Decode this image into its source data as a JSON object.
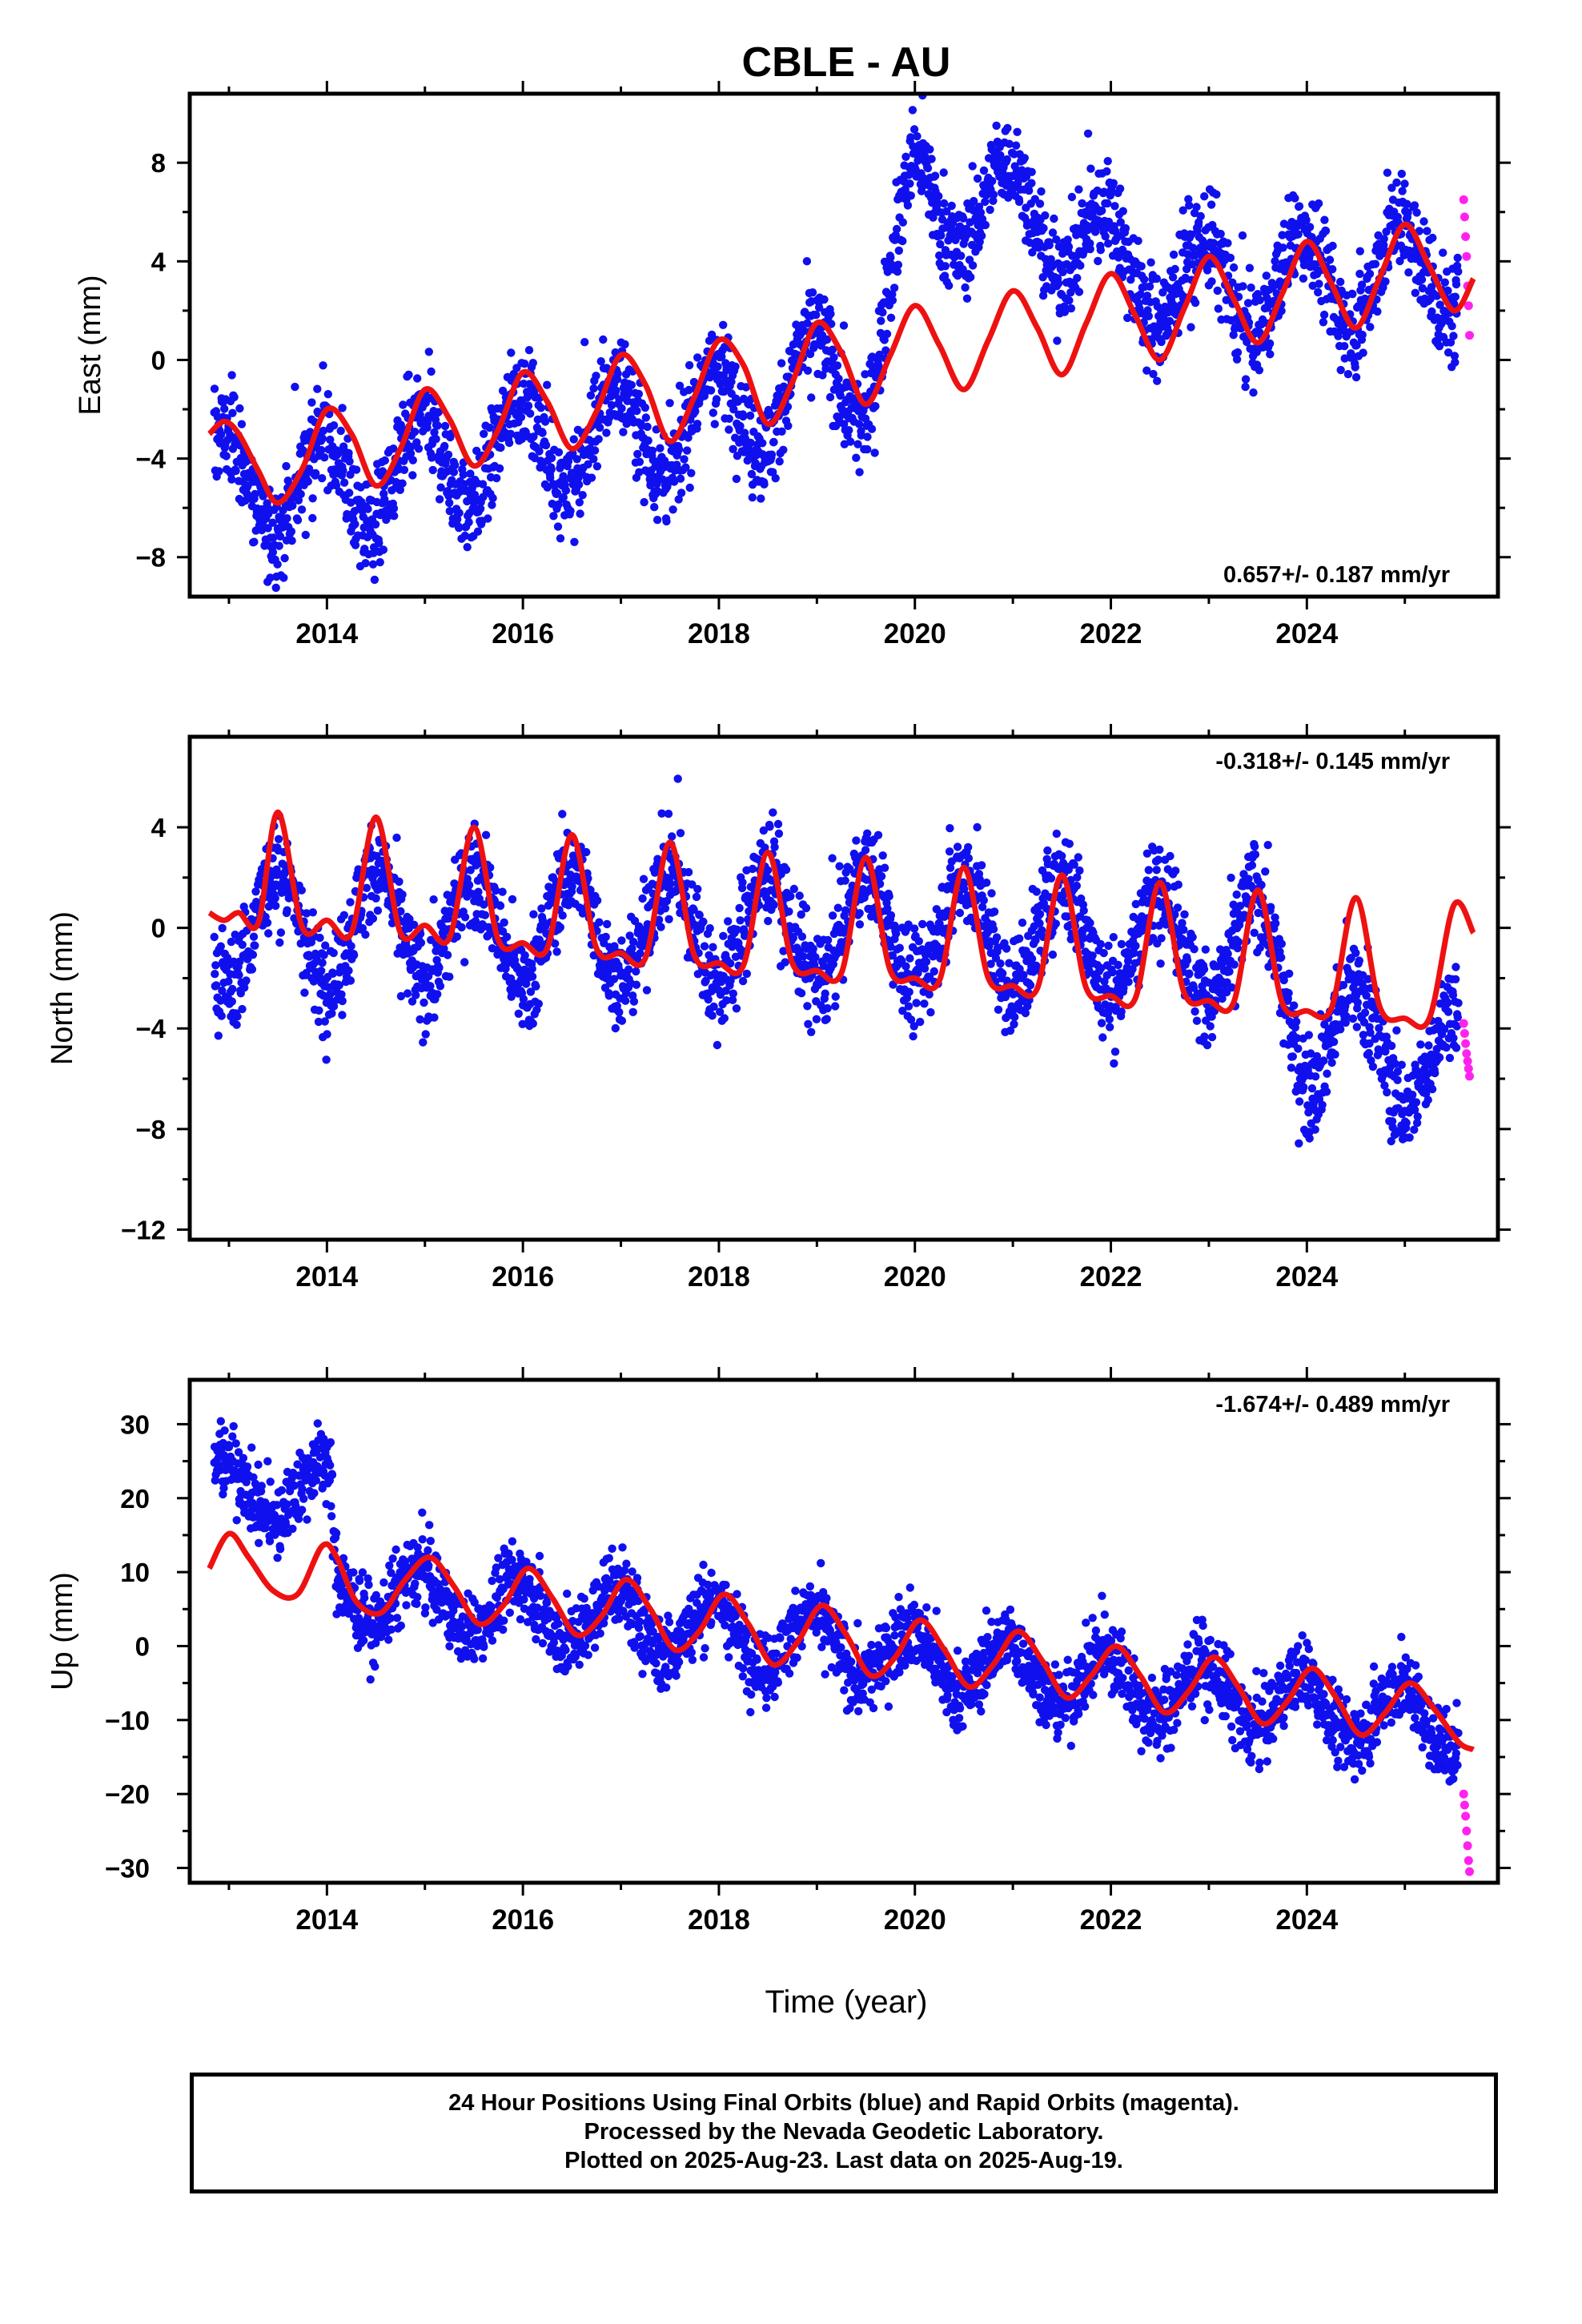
{
  "page": {
    "title": "CBLE - AU"
  },
  "colors": {
    "final_orbits": "#1010ee",
    "rapid_orbits": "#ff22ee",
    "fit": "#ee1111",
    "frame": "#000000"
  },
  "footer": {
    "line1": "24 Hour Positions Using Final Orbits (blue) and Rapid Orbits (magenta).",
    "line2": "Processed by the Nevada Geodetic Laboratory.",
    "line3": "Plotted on 2025-Aug-23. Last data on 2025-Aug-19."
  },
  "chart_data": [
    {
      "type": "scatter",
      "title": "CBLE - AU",
      "ylabel": "East (mm)",
      "xlabel": "",
      "xlim": [
        2012.6,
        2025.95
      ],
      "ylim": [
        -9.6,
        10.8
      ],
      "xticks": [
        "2014",
        "2016",
        "2018",
        "2020",
        "2022",
        "2024"
      ],
      "yticks": [
        "8",
        "4",
        "0",
        "−4",
        "−8"
      ],
      "ytick_values": [
        8,
        4,
        0,
        -4,
        -8
      ],
      "rate_label": "0.657+/- 0.187 mm/yr",
      "rate_position": "bottom-right",
      "series": [
        {
          "kind": "scatter",
          "orbit": "final",
          "color": "#1010ee",
          "x_start": 2012.85,
          "x_end": 2025.55,
          "trend_x": [
            2012.8,
            2014.0,
            2016.0,
            2018.0,
            2019.0,
            2019.5,
            2020.0,
            2020.8,
            2021.5,
            2022.0,
            2023.0,
            2024.0,
            2025.6
          ],
          "trend_y": [
            -4.8,
            -5.2,
            -3.4,
            -2.3,
            -0.8,
            -0.6,
            6.5,
            6.4,
            5.4,
            4.0,
            2.8,
            3.2,
            3.8
          ],
          "seasonal_amplitude": 2.0,
          "scatter_spread": 1.0
        },
        {
          "kind": "scatter",
          "orbit": "rapid",
          "color": "#ff22ee",
          "x": [
            2025.6,
            2025.61,
            2025.62,
            2025.63,
            2025.64,
            2025.65,
            2025.66
          ],
          "y": [
            6.5,
            5.8,
            5.0,
            4.2,
            3.0,
            2.2,
            1.0
          ]
        },
        {
          "kind": "line",
          "name": "fit",
          "color": "#ee1111",
          "x": [
            2012.8,
            2012.95,
            2013.1,
            2013.3,
            2013.5,
            2013.75,
            2014.0,
            2014.25,
            2014.5,
            2014.75,
            2015.0,
            2015.25,
            2015.5,
            2015.75,
            2016.0,
            2016.25,
            2016.5,
            2016.75,
            2017.0,
            2017.25,
            2017.5,
            2017.75,
            2018.0,
            2018.25,
            2018.5,
            2018.75,
            2019.0,
            2019.25,
            2019.5,
            2019.75,
            2020.0,
            2020.25,
            2020.5,
            2020.75,
            2021.0,
            2021.25,
            2021.5,
            2021.75,
            2022.0,
            2022.25,
            2022.5,
            2022.75,
            2023.0,
            2023.25,
            2023.5,
            2023.75,
            2024.0,
            2024.25,
            2024.5,
            2024.75,
            2025.0,
            2025.25,
            2025.5,
            2025.7
          ],
          "y": [
            -3.0,
            -2.5,
            -3.0,
            -4.5,
            -5.8,
            -4.4,
            -2.0,
            -3.0,
            -5.1,
            -3.6,
            -1.2,
            -2.4,
            -4.3,
            -2.8,
            -0.5,
            -1.7,
            -3.6,
            -2.1,
            0.2,
            -1.0,
            -3.3,
            -1.5,
            0.8,
            -0.2,
            -2.6,
            -0.9,
            1.5,
            0.3,
            -1.8,
            0.2,
            2.2,
            0.6,
            -1.2,
            0.8,
            2.8,
            1.3,
            -0.6,
            1.5,
            3.5,
            1.8,
            0.0,
            2.1,
            4.2,
            2.5,
            0.7,
            2.7,
            4.8,
            3.1,
            1.3,
            3.4,
            5.5,
            3.8,
            2.0,
            3.3
          ]
        }
      ]
    },
    {
      "type": "scatter",
      "ylabel": "North (mm)",
      "xlabel": "",
      "xlim": [
        2012.6,
        2025.95
      ],
      "ylim": [
        -12.4,
        7.6
      ],
      "xticks": [
        "2014",
        "2016",
        "2018",
        "2020",
        "2022",
        "2024"
      ],
      "yticks": [
        "4",
        "0",
        "−4",
        "−8",
        "−12"
      ],
      "ytick_values": [
        4,
        0,
        -4,
        -8,
        -12
      ],
      "rate_label": "-0.318+/- 0.145 mm/yr",
      "rate_position": "top-right",
      "series": [
        {
          "kind": "scatter",
          "orbit": "final",
          "color": "#1010ee",
          "x_start": 2012.85,
          "x_end": 2025.55,
          "trend_x": [
            2012.8,
            2016.0,
            2020.0,
            2023.5,
            2024.0,
            2025.0,
            2025.6
          ],
          "trend_y": [
            0.0,
            0.0,
            0.0,
            -0.8,
            -4.0,
            -5.0,
            -5.5
          ],
          "seasonal_amplitude": 2.2,
          "scatter_spread": 1.0
        },
        {
          "kind": "scatter",
          "orbit": "rapid",
          "color": "#ff22ee",
          "x": [
            2025.6,
            2025.61,
            2025.62,
            2025.63,
            2025.64,
            2025.65,
            2025.66
          ],
          "y": [
            -3.8,
            -4.2,
            -4.6,
            -5.0,
            -5.3,
            -5.6,
            -5.9
          ]
        },
        {
          "kind": "line",
          "name": "fit",
          "color": "#ee1111",
          "x": [
            2012.8,
            2012.95,
            2013.1,
            2013.3,
            2013.5,
            2013.75,
            2014.0,
            2014.25,
            2014.5,
            2014.75,
            2015.0,
            2015.25,
            2015.5,
            2015.75,
            2016.0,
            2016.25,
            2016.5,
            2016.75,
            2017.0,
            2017.25,
            2017.5,
            2017.75,
            2018.0,
            2018.25,
            2018.5,
            2018.75,
            2019.0,
            2019.25,
            2019.5,
            2019.75,
            2020.0,
            2020.25,
            2020.5,
            2020.75,
            2021.0,
            2021.25,
            2021.5,
            2021.75,
            2022.0,
            2022.25,
            2022.5,
            2022.75,
            2023.0,
            2023.25,
            2023.5,
            2023.75,
            2024.0,
            2024.25,
            2024.5,
            2024.75,
            2025.0,
            2025.25,
            2025.5,
            2025.7
          ],
          "y": [
            0.6,
            0.3,
            0.6,
            0.2,
            4.6,
            0.0,
            0.3,
            -0.2,
            4.4,
            -0.2,
            0.1,
            -0.4,
            4.0,
            -0.5,
            -0.6,
            -0.8,
            3.7,
            -0.8,
            -1.0,
            -1.2,
            3.4,
            -1.1,
            -1.4,
            -1.5,
            3.0,
            -1.4,
            -1.7,
            -1.8,
            2.8,
            -1.7,
            -2.0,
            -2.1,
            2.4,
            -2.0,
            -2.3,
            -2.4,
            2.1,
            -2.4,
            -2.7,
            -2.8,
            1.8,
            -2.6,
            -2.9,
            -3.0,
            1.5,
            -3.0,
            -3.3,
            -3.2,
            1.2,
            -3.2,
            -3.6,
            -3.6,
            0.9,
            -0.2
          ]
        }
      ]
    },
    {
      "type": "scatter",
      "ylabel": "Up (mm)",
      "xlabel": "Time (year)",
      "xlim": [
        2012.6,
        2025.95
      ],
      "ylim": [
        -32.0,
        36.0
      ],
      "xticks": [
        "2014",
        "2016",
        "2018",
        "2020",
        "2022",
        "2024"
      ],
      "yticks": [
        "30",
        "20",
        "10",
        "0",
        "−10",
        "−20",
        "−30"
      ],
      "ytick_values": [
        30,
        20,
        10,
        0,
        -10,
        -20,
        -30
      ],
      "rate_label": "-1.674+/- 0.489 mm/yr",
      "rate_position": "top-right",
      "series": [
        {
          "kind": "scatter",
          "orbit": "final",
          "color": "#1010ee",
          "x_start": 2012.85,
          "x_end": 2025.55,
          "trend_x": [
            2012.8,
            2014.02,
            2014.1,
            2016.0,
            2018.0,
            2020.0,
            2022.0,
            2024.0,
            2025.6
          ],
          "trend_y": [
            21.0,
            21.0,
            7.5,
            5.0,
            2.0,
            -1.5,
            -5.0,
            -8.0,
            -10.5
          ],
          "seasonal_amplitude": 4.0,
          "scatter_spread": 2.5
        },
        {
          "kind": "scatter",
          "orbit": "rapid",
          "color": "#ff22ee",
          "x": [
            2025.6,
            2025.61,
            2025.62,
            2025.63,
            2025.64,
            2025.65,
            2025.66
          ],
          "y": [
            -20.0,
            -21.5,
            -23.0,
            -25.0,
            -27.0,
            -29.0,
            -30.5
          ]
        },
        {
          "kind": "line",
          "name": "fit",
          "color": "#ee1111",
          "x": [
            2012.8,
            2013.0,
            2013.2,
            2013.45,
            2013.7,
            2013.95,
            2014.1,
            2014.3,
            2014.55,
            2014.8,
            2015.05,
            2015.3,
            2015.55,
            2015.8,
            2016.05,
            2016.3,
            2016.55,
            2016.8,
            2017.05,
            2017.3,
            2017.55,
            2017.8,
            2018.05,
            2018.3,
            2018.55,
            2018.8,
            2019.05,
            2019.3,
            2019.55,
            2019.8,
            2020.05,
            2020.3,
            2020.55,
            2020.8,
            2021.05,
            2021.3,
            2021.55,
            2021.8,
            2022.05,
            2022.3,
            2022.55,
            2022.8,
            2023.05,
            2023.3,
            2023.55,
            2023.8,
            2024.05,
            2024.3,
            2024.55,
            2024.8,
            2025.05,
            2025.3,
            2025.55,
            2025.7
          ],
          "y": [
            10.5,
            15.2,
            12.0,
            7.5,
            7.0,
            13.5,
            12.0,
            6.0,
            4.5,
            9.0,
            12.0,
            8.0,
            3.0,
            5.5,
            10.5,
            6.5,
            1.5,
            4.0,
            9.0,
            5.0,
            -0.5,
            2.0,
            7.0,
            3.0,
            -2.5,
            0.5,
            5.5,
            1.5,
            -4.0,
            -1.5,
            3.5,
            -0.5,
            -5.5,
            -2.5,
            2.0,
            -2.0,
            -7.0,
            -4.0,
            0.0,
            -4.0,
            -9.0,
            -6.0,
            -1.5,
            -5.5,
            -10.5,
            -7.5,
            -3.0,
            -7.0,
            -12.0,
            -9.0,
            -5.0,
            -8.5,
            -13.0,
            -14.0
          ]
        }
      ]
    }
  ]
}
